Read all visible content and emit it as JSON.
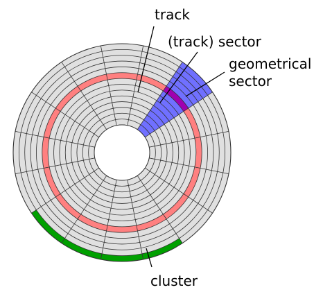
{
  "diagram": {
    "labels": {
      "track": "track",
      "track_sector": "(track) sector",
      "geometrical_line1": "geometrical",
      "geometrical_line2": "sector",
      "cluster": "cluster"
    },
    "colors": {
      "disk_fill": "#e0e0e0",
      "lines": "#333333",
      "track_highlight": "#ff8080",
      "geometrical_sector": "#7070ff",
      "track_sector": "#a000b0",
      "cluster": "#00a000",
      "hole": "#ffffff"
    },
    "structure": {
      "track_count": 14,
      "sector_count": 16
    }
  }
}
